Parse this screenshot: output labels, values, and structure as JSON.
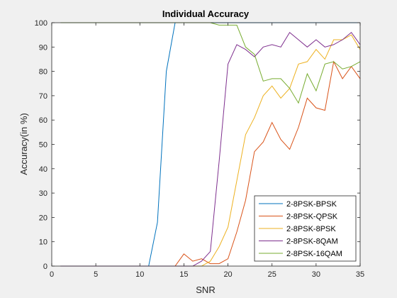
{
  "chart_data": {
    "type": "line",
    "title": "Individual Accuracy",
    "xlabel": "SNR",
    "ylabel": "Accuracy(in %)",
    "xlim": [
      0,
      35
    ],
    "ylim": [
      0,
      100
    ],
    "xticks": [
      0,
      5,
      10,
      15,
      20,
      25,
      30,
      35
    ],
    "yticks": [
      0,
      10,
      20,
      30,
      40,
      50,
      60,
      70,
      80,
      90,
      100
    ],
    "grid": false,
    "legend_position": "bottom-right",
    "x": [
      1,
      2,
      3,
      4,
      5,
      6,
      7,
      8,
      9,
      10,
      11,
      12,
      13,
      14,
      15,
      16,
      17,
      18,
      19,
      20,
      21,
      22,
      23,
      24,
      25,
      26,
      27,
      28,
      29,
      30,
      31,
      32,
      33,
      34,
      35
    ],
    "series": [
      {
        "name": "2-8PSK-BPSK",
        "color": "#0072BD",
        "values": [
          0,
          0,
          0,
          0,
          0,
          0,
          0,
          0,
          0,
          0,
          0,
          18,
          80,
          100,
          100,
          100,
          100,
          100,
          100,
          100,
          100,
          100,
          100,
          100,
          100,
          100,
          100,
          100,
          100,
          100,
          100,
          100,
          100,
          100,
          100
        ]
      },
      {
        "name": "2-8PSK-QPSK",
        "color": "#D95319",
        "values": [
          0,
          0,
          0,
          0,
          0,
          0,
          0,
          0,
          0,
          0,
          0,
          0,
          0,
          0,
          5,
          2,
          3,
          1,
          1,
          3,
          14,
          27,
          47,
          51,
          59,
          52,
          48,
          57,
          69,
          65,
          64,
          84,
          77,
          82,
          77
        ]
      },
      {
        "name": "2-8PSK-8PSK",
        "color": "#EDB120",
        "values": [
          0,
          0,
          0,
          0,
          0,
          0,
          0,
          0,
          0,
          0,
          0,
          0,
          0,
          0,
          0,
          0,
          0,
          2,
          8,
          16,
          35,
          54,
          61,
          70,
          74,
          69,
          73,
          83,
          84,
          89,
          85,
          93,
          93,
          95,
          89
        ]
      },
      {
        "name": "2-8PSK-8QAM",
        "color": "#7E2F8E",
        "values": [
          0,
          0,
          0,
          0,
          0,
          0,
          0,
          0,
          0,
          0,
          0,
          0,
          0,
          0,
          0,
          0,
          2,
          6,
          43,
          83,
          91,
          89,
          86,
          90,
          91,
          90,
          96,
          93,
          90,
          93,
          90,
          91,
          93,
          96,
          91
        ]
      },
      {
        "name": "2-8PSK-16QAM",
        "color": "#77AC30",
        "values": [
          100,
          100,
          100,
          100,
          100,
          100,
          100,
          100,
          100,
          100,
          100,
          100,
          100,
          100,
          100,
          100,
          100,
          100,
          99,
          99,
          99,
          90,
          87,
          76,
          77,
          77,
          73,
          67,
          79,
          72,
          83,
          84,
          81,
          82,
          84
        ]
      }
    ]
  }
}
